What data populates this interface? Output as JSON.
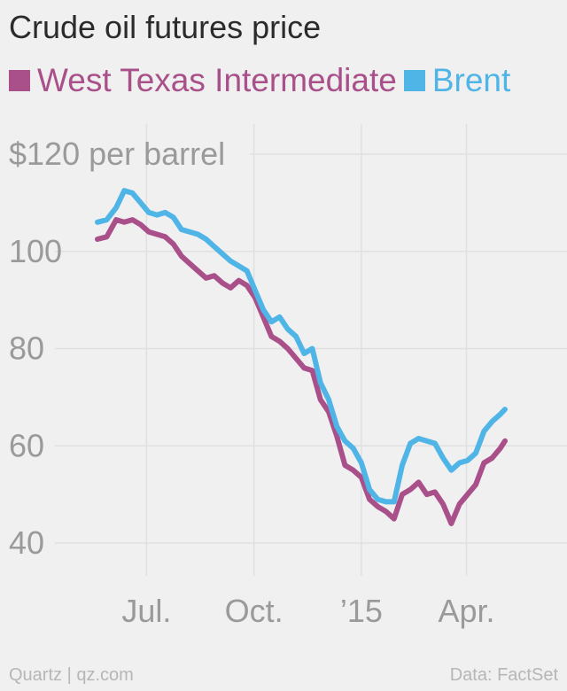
{
  "chart_data": {
    "type": "line",
    "title": "Crude oil futures price",
    "ylabel": "$120 per barrel",
    "ylim": [
      40,
      120
    ],
    "y_ticks": [
      {
        "value": 120,
        "label": "$120 per barrel"
      },
      {
        "value": 100,
        "label": "100"
      },
      {
        "value": 80,
        "label": "80"
      },
      {
        "value": 60,
        "label": "60"
      },
      {
        "value": 40,
        "label": "40"
      }
    ],
    "x_ticks": [
      {
        "date": "2014-07-01",
        "label": "Jul."
      },
      {
        "date": "2014-10-01",
        "label": "Oct."
      },
      {
        "date": "2015-01-01",
        "label": "’15"
      },
      {
        "date": "2015-04-01",
        "label": "Apr."
      }
    ],
    "xlim": [
      "2014-05-12",
      "2015-05-05"
    ],
    "grid": true,
    "legend_position": "top",
    "series": [
      {
        "name": "West Texas Intermediate",
        "color": "#a9508a",
        "points": [
          [
            "2014-05-20",
            102.5
          ],
          [
            "2014-05-28",
            103.0
          ],
          [
            "2014-06-05",
            106.5
          ],
          [
            "2014-06-12",
            106.0
          ],
          [
            "2014-06-19",
            106.5
          ],
          [
            "2014-06-26",
            105.5
          ],
          [
            "2014-07-03",
            104.0
          ],
          [
            "2014-07-10",
            103.5
          ],
          [
            "2014-07-17",
            103.0
          ],
          [
            "2014-07-24",
            101.5
          ],
          [
            "2014-07-31",
            99.0
          ],
          [
            "2014-08-07",
            97.5
          ],
          [
            "2014-08-14",
            96.0
          ],
          [
            "2014-08-21",
            94.5
          ],
          [
            "2014-08-28",
            95.0
          ],
          [
            "2014-09-04",
            93.5
          ],
          [
            "2014-09-11",
            92.5
          ],
          [
            "2014-09-18",
            94.0
          ],
          [
            "2014-09-25",
            93.0
          ],
          [
            "2014-10-02",
            90.5
          ],
          [
            "2014-10-09",
            86.5
          ],
          [
            "2014-10-16",
            82.5
          ],
          [
            "2014-10-23",
            81.5
          ],
          [
            "2014-10-30",
            80.0
          ],
          [
            "2014-11-06",
            78.0
          ],
          [
            "2014-11-13",
            76.0
          ],
          [
            "2014-11-20",
            75.5
          ],
          [
            "2014-11-27",
            69.5
          ],
          [
            "2014-12-04",
            67.0
          ],
          [
            "2014-12-11",
            62.0
          ],
          [
            "2014-12-18",
            56.0
          ],
          [
            "2014-12-25",
            55.0
          ],
          [
            "2015-01-01",
            53.5
          ],
          [
            "2015-01-08",
            49.0
          ],
          [
            "2015-01-15",
            47.5
          ],
          [
            "2015-01-22",
            46.5
          ],
          [
            "2015-01-29",
            45.0
          ],
          [
            "2015-02-05",
            50.0
          ],
          [
            "2015-02-12",
            51.0
          ],
          [
            "2015-02-19",
            52.5
          ],
          [
            "2015-02-26",
            50.0
          ],
          [
            "2015-03-05",
            50.5
          ],
          [
            "2015-03-12",
            48.0
          ],
          [
            "2015-03-19",
            44.0
          ],
          [
            "2015-03-26",
            48.0
          ],
          [
            "2015-04-02",
            50.0
          ],
          [
            "2015-04-09",
            52.0
          ],
          [
            "2015-04-16",
            56.5
          ],
          [
            "2015-04-23",
            57.5
          ],
          [
            "2015-04-30",
            59.5
          ],
          [
            "2015-05-04",
            61.0
          ]
        ]
      },
      {
        "name": "Brent",
        "color": "#4fb4e6",
        "points": [
          [
            "2014-05-20",
            106.0
          ],
          [
            "2014-05-28",
            106.5
          ],
          [
            "2014-06-05",
            109.0
          ],
          [
            "2014-06-12",
            112.5
          ],
          [
            "2014-06-19",
            112.0
          ],
          [
            "2014-06-26",
            110.0
          ],
          [
            "2014-07-03",
            108.0
          ],
          [
            "2014-07-10",
            107.5
          ],
          [
            "2014-07-17",
            108.0
          ],
          [
            "2014-07-24",
            107.0
          ],
          [
            "2014-07-31",
            104.5
          ],
          [
            "2014-08-07",
            104.0
          ],
          [
            "2014-08-14",
            103.5
          ],
          [
            "2014-08-21",
            102.5
          ],
          [
            "2014-08-28",
            101.0
          ],
          [
            "2014-09-04",
            99.5
          ],
          [
            "2014-09-11",
            98.0
          ],
          [
            "2014-09-18",
            97.0
          ],
          [
            "2014-09-25",
            96.0
          ],
          [
            "2014-10-02",
            92.0
          ],
          [
            "2014-10-09",
            88.0
          ],
          [
            "2014-10-16",
            85.5
          ],
          [
            "2014-10-23",
            86.5
          ],
          [
            "2014-10-30",
            84.0
          ],
          [
            "2014-11-06",
            82.5
          ],
          [
            "2014-11-13",
            79.0
          ],
          [
            "2014-11-20",
            80.0
          ],
          [
            "2014-11-27",
            73.0
          ],
          [
            "2014-12-04",
            69.5
          ],
          [
            "2014-12-11",
            64.0
          ],
          [
            "2014-12-18",
            61.0
          ],
          [
            "2014-12-25",
            59.5
          ],
          [
            "2015-01-01",
            56.5
          ],
          [
            "2015-01-08",
            51.0
          ],
          [
            "2015-01-15",
            49.0
          ],
          [
            "2015-01-22",
            48.5
          ],
          [
            "2015-01-29",
            48.5
          ],
          [
            "2015-02-05",
            56.0
          ],
          [
            "2015-02-12",
            60.5
          ],
          [
            "2015-02-19",
            61.5
          ],
          [
            "2015-02-26",
            61.0
          ],
          [
            "2015-03-05",
            60.5
          ],
          [
            "2015-03-12",
            57.5
          ],
          [
            "2015-03-19",
            55.0
          ],
          [
            "2015-03-26",
            56.5
          ],
          [
            "2015-04-02",
            57.0
          ],
          [
            "2015-04-09",
            58.5
          ],
          [
            "2015-04-16",
            63.0
          ],
          [
            "2015-04-23",
            65.0
          ],
          [
            "2015-04-30",
            66.5
          ],
          [
            "2015-05-04",
            67.5
          ]
        ]
      }
    ]
  },
  "footer": {
    "left": "Quartz | qz.com",
    "right": "Data: FactSet"
  },
  "colors": {
    "background": "#f0f0f0",
    "grid": "#e0e0e0",
    "axis_text": "#9a9a9a",
    "title": "#2b2b2b"
  }
}
